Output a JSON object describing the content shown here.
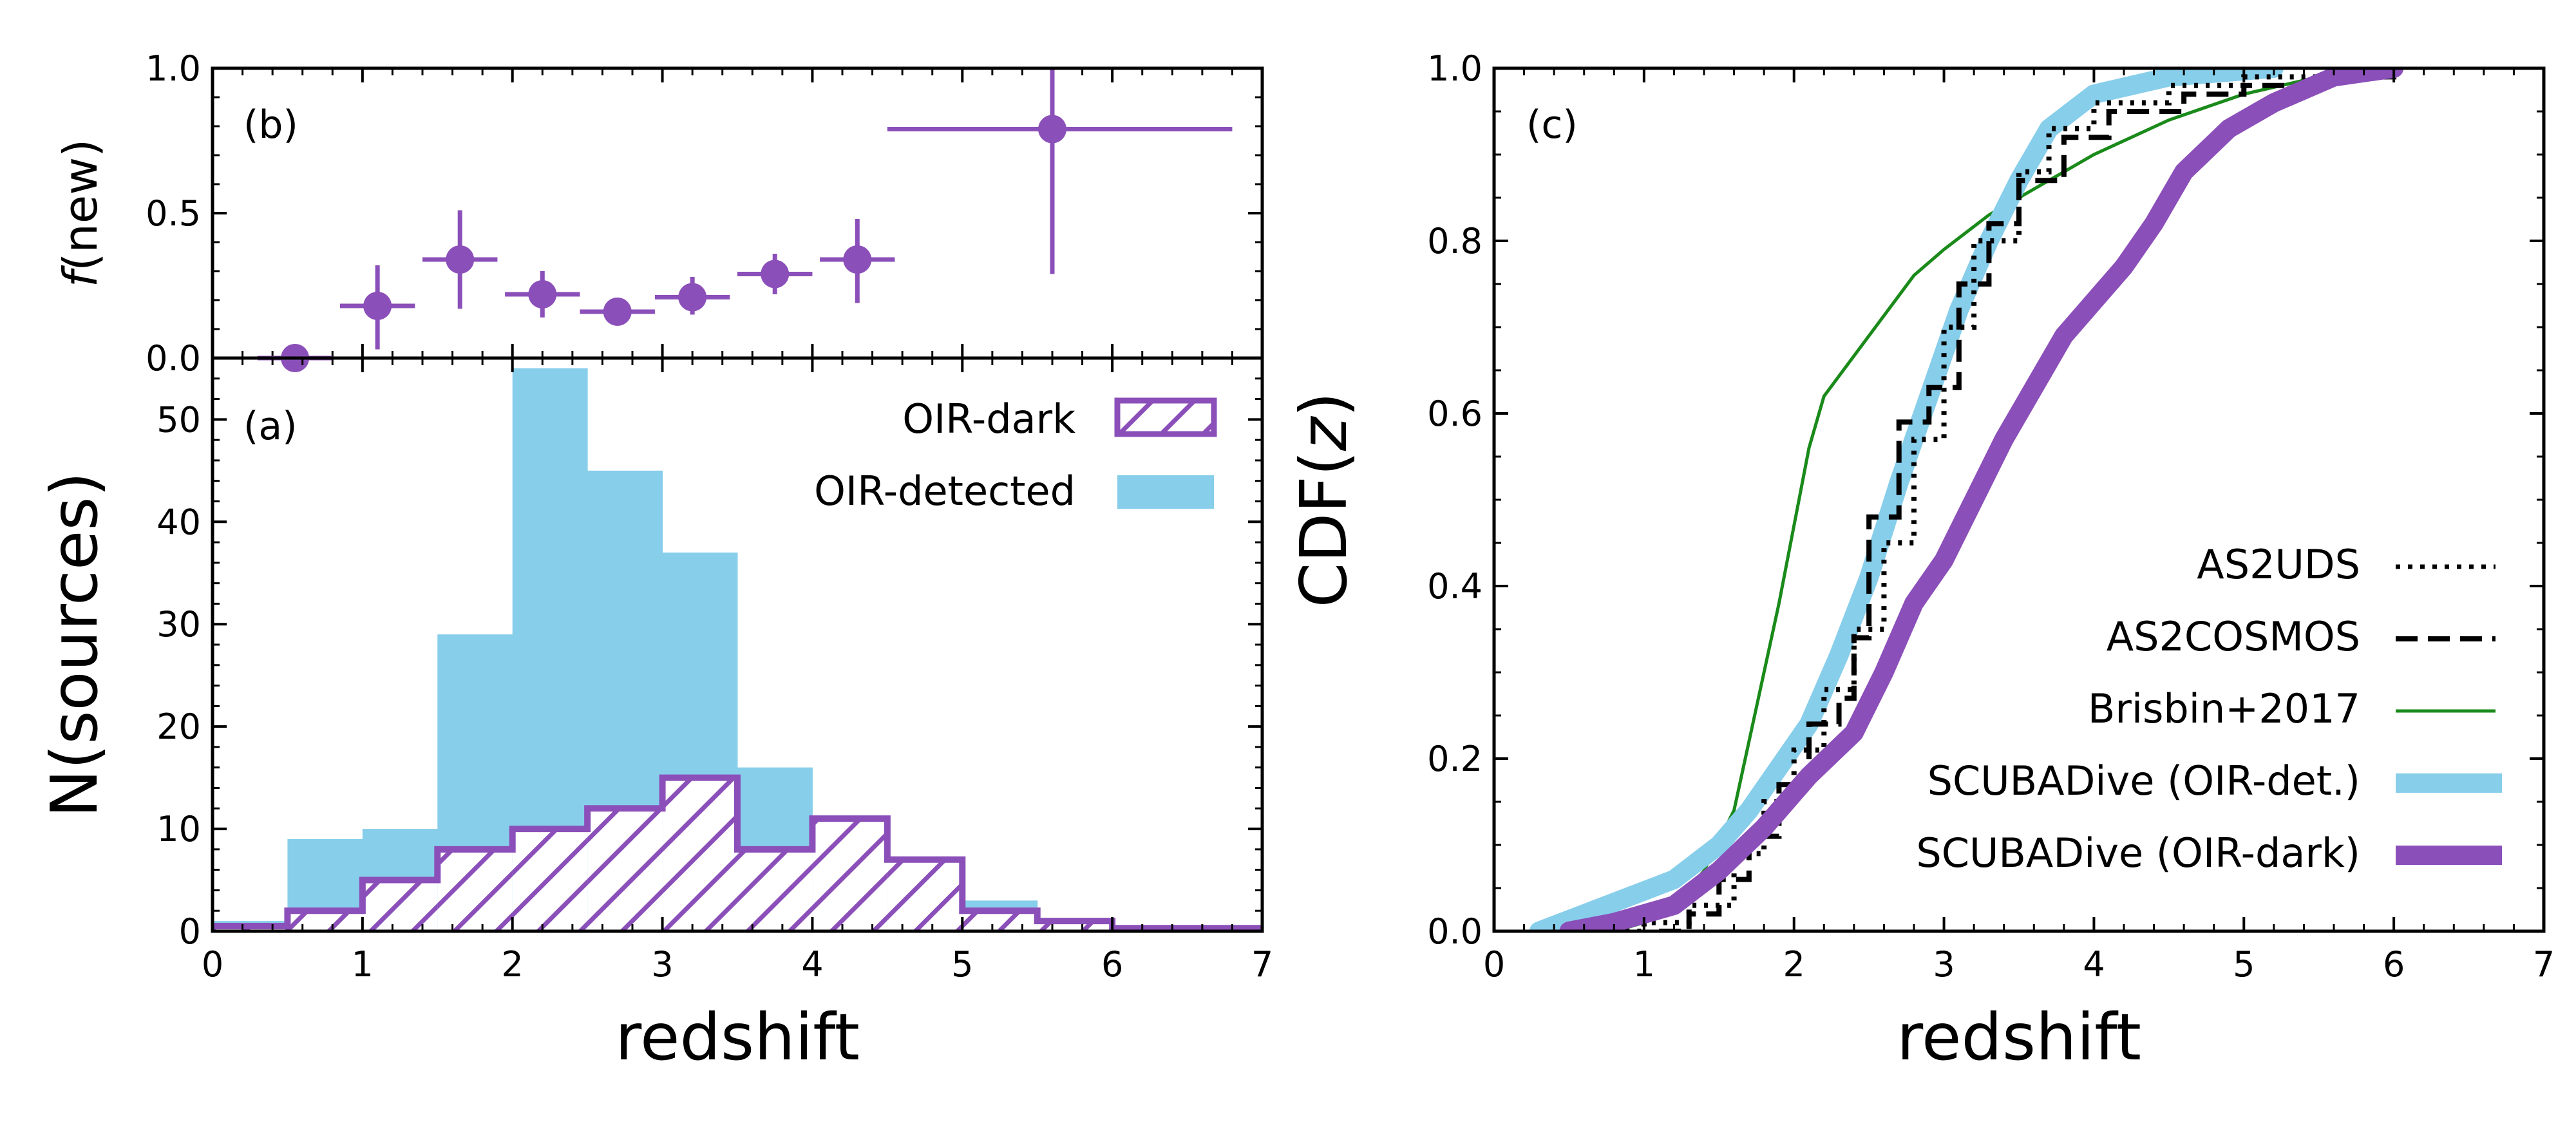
{
  "colors": {
    "oir_detected": "#87ceeb",
    "oir_dark": "#8b4fb9",
    "as2uds": "#000000",
    "as2cosmos": "#000000",
    "brisbin": "#1a8a1a"
  },
  "chart_data": [
    {
      "id": "panel-b",
      "type": "scatter",
      "panel_label": "(b)",
      "ylabel_italic": "f",
      "ylabel_rest": "(new)",
      "xlim": [
        0,
        7
      ],
      "ylim": [
        0,
        1
      ],
      "yticks": [
        "0.0",
        "0.5",
        "1.0"
      ],
      "points": [
        {
          "x": 0.55,
          "y": 0.0,
          "xerr": 0.25,
          "yerr_lo": 0.0,
          "yerr_hi": 0.0
        },
        {
          "x": 1.1,
          "y": 0.18,
          "xerr": 0.25,
          "yerr_lo": 0.15,
          "yerr_hi": 0.14
        },
        {
          "x": 1.65,
          "y": 0.34,
          "xerr": 0.25,
          "yerr_lo": 0.17,
          "yerr_hi": 0.17
        },
        {
          "x": 2.2,
          "y": 0.22,
          "xerr": 0.25,
          "yerr_lo": 0.08,
          "yerr_hi": 0.08
        },
        {
          "x": 2.7,
          "y": 0.16,
          "xerr": 0.25,
          "yerr_lo": 0.04,
          "yerr_hi": 0.04
        },
        {
          "x": 3.2,
          "y": 0.21,
          "xerr": 0.25,
          "yerr_lo": 0.06,
          "yerr_hi": 0.07
        },
        {
          "x": 3.75,
          "y": 0.29,
          "xerr": 0.25,
          "yerr_lo": 0.07,
          "yerr_hi": 0.07
        },
        {
          "x": 4.3,
          "y": 0.34,
          "xerr": 0.25,
          "yerr_lo": 0.15,
          "yerr_hi": 0.14
        },
        {
          "x": 5.6,
          "y": 0.79,
          "xerr_lo": 1.1,
          "xerr_hi": 1.2,
          "yerr_lo": 0.5,
          "yerr_hi": 0.25
        }
      ]
    },
    {
      "id": "panel-a",
      "type": "bar",
      "panel_label": "(a)",
      "xlabel": "redshift",
      "ylabel": "N(sources)",
      "xlim": [
        0,
        7
      ],
      "ylim": [
        0,
        56
      ],
      "xticks": [
        "0",
        "1",
        "2",
        "3",
        "4",
        "5",
        "6",
        "7"
      ],
      "yticks": [
        "0",
        "10",
        "20",
        "30",
        "40",
        "50"
      ],
      "bin_edges": [
        0,
        0.5,
        1.0,
        1.5,
        2.0,
        2.5,
        3.0,
        3.5,
        4.0,
        4.5,
        5.0,
        5.5,
        6.0,
        6.5,
        7.0
      ],
      "series": [
        {
          "name": "OIR-detected",
          "values": [
            1,
            9,
            10,
            29,
            55,
            45,
            37,
            16,
            5,
            5,
            3,
            0,
            0,
            0
          ]
        },
        {
          "name": "OIR-dark",
          "values": [
            0.5,
            2,
            5,
            8,
            10,
            12,
            15,
            8,
            11,
            7,
            2,
            1,
            0.3,
            0.3
          ]
        }
      ],
      "legend": [
        {
          "key": "dark",
          "label": "OIR-dark"
        },
        {
          "key": "det",
          "label": "OIR-detected"
        }
      ]
    },
    {
      "id": "panel-c",
      "type": "line",
      "panel_label": "(c)",
      "xlabel": "redshift",
      "ylabel_pre": "CDF(",
      "ylabel_italic": "z",
      "ylabel_post": ")",
      "xlim": [
        0,
        7
      ],
      "ylim": [
        0,
        1
      ],
      "xticks": [
        "0",
        "1",
        "2",
        "3",
        "4",
        "5",
        "6",
        "7"
      ],
      "yticks": [
        "0.0",
        "0.2",
        "0.4",
        "0.6",
        "0.8",
        "1.0"
      ],
      "series": [
        {
          "name": "AS2UDS",
          "style": "dotted",
          "points": [
            [
              0.8,
              0
            ],
            [
              1.0,
              0.01
            ],
            [
              1.3,
              0.03
            ],
            [
              1.6,
              0.09
            ],
            [
              1.8,
              0.15
            ],
            [
              2.0,
              0.21
            ],
            [
              2.2,
              0.28
            ],
            [
              2.4,
              0.35
            ],
            [
              2.6,
              0.45
            ],
            [
              2.8,
              0.57
            ],
            [
              3.0,
              0.7
            ],
            [
              3.2,
              0.8
            ],
            [
              3.5,
              0.88
            ],
            [
              3.7,
              0.93
            ],
            [
              4.0,
              0.96
            ],
            [
              4.5,
              0.98
            ],
            [
              5.0,
              0.99
            ],
            [
              6.0,
              1.0
            ]
          ]
        },
        {
          "name": "AS2COSMOS",
          "style": "dashed",
          "points": [
            [
              1.1,
              0
            ],
            [
              1.3,
              0.02
            ],
            [
              1.5,
              0.06
            ],
            [
              1.7,
              0.11
            ],
            [
              1.9,
              0.17
            ],
            [
              2.1,
              0.24
            ],
            [
              2.3,
              0.27
            ],
            [
              2.4,
              0.34
            ],
            [
              2.5,
              0.48
            ],
            [
              2.7,
              0.59
            ],
            [
              2.9,
              0.63
            ],
            [
              3.1,
              0.75
            ],
            [
              3.3,
              0.82
            ],
            [
              3.5,
              0.87
            ],
            [
              3.8,
              0.92
            ],
            [
              4.1,
              0.95
            ],
            [
              4.6,
              0.97
            ],
            [
              5.0,
              0.98
            ],
            [
              5.5,
              0.99
            ],
            [
              6.0,
              1.0
            ]
          ]
        },
        {
          "name": "Brisbin+2017",
          "style": "thin",
          "points": [
            [
              0.8,
              0
            ],
            [
              1.0,
              0.01
            ],
            [
              1.2,
              0.03
            ],
            [
              1.4,
              0.07
            ],
            [
              1.6,
              0.14
            ],
            [
              1.7,
              0.22
            ],
            [
              1.8,
              0.3
            ],
            [
              1.9,
              0.38
            ],
            [
              2.0,
              0.47
            ],
            [
              2.1,
              0.56
            ],
            [
              2.2,
              0.62
            ],
            [
              2.5,
              0.69
            ],
            [
              2.8,
              0.76
            ],
            [
              3.0,
              0.79
            ],
            [
              3.3,
              0.83
            ],
            [
              3.6,
              0.86
            ],
            [
              4.0,
              0.9
            ],
            [
              4.5,
              0.94
            ],
            [
              5.0,
              0.97
            ],
            [
              5.5,
              0.99
            ],
            [
              6.0,
              1.0
            ]
          ]
        },
        {
          "name": "SCUBADive (OIR-det.)",
          "style": "thick",
          "points": [
            [
              0.3,
              0
            ],
            [
              0.6,
              0.02
            ],
            [
              0.9,
              0.04
            ],
            [
              1.2,
              0.06
            ],
            [
              1.5,
              0.1
            ],
            [
              1.7,
              0.14
            ],
            [
              1.9,
              0.19
            ],
            [
              2.1,
              0.24
            ],
            [
              2.3,
              0.32
            ],
            [
              2.5,
              0.41
            ],
            [
              2.7,
              0.52
            ],
            [
              2.9,
              0.62
            ],
            [
              3.1,
              0.72
            ],
            [
              3.3,
              0.8
            ],
            [
              3.5,
              0.87
            ],
            [
              3.7,
              0.93
            ],
            [
              4.0,
              0.97
            ],
            [
              4.5,
              0.99
            ],
            [
              5.2,
              1.0
            ]
          ]
        },
        {
          "name": "SCUBADive (OIR-dark)",
          "style": "thicker",
          "points": [
            [
              0.5,
              0
            ],
            [
              0.8,
              0.01
            ],
            [
              1.2,
              0.03
            ],
            [
              1.5,
              0.07
            ],
            [
              1.8,
              0.12
            ],
            [
              2.1,
              0.18
            ],
            [
              2.4,
              0.23
            ],
            [
              2.6,
              0.3
            ],
            [
              2.8,
              0.38
            ],
            [
              3.0,
              0.43
            ],
            [
              3.2,
              0.5
            ],
            [
              3.4,
              0.57
            ],
            [
              3.6,
              0.63
            ],
            [
              3.8,
              0.69
            ],
            [
              4.0,
              0.73
            ],
            [
              4.2,
              0.77
            ],
            [
              4.4,
              0.82
            ],
            [
              4.6,
              0.88
            ],
            [
              4.9,
              0.93
            ],
            [
              5.2,
              0.96
            ],
            [
              5.6,
              0.99
            ],
            [
              6.0,
              1.0
            ]
          ]
        }
      ]
    }
  ]
}
